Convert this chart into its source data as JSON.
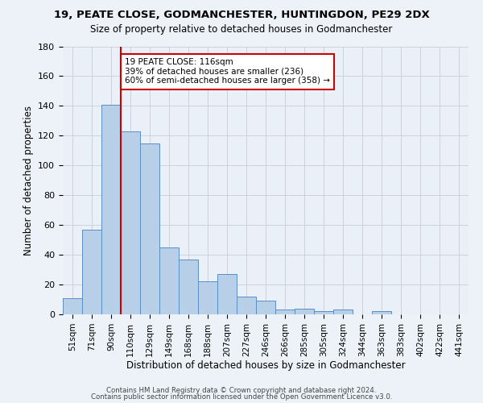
{
  "title": "19, PEATE CLOSE, GODMANCHESTER, HUNTINGDON, PE29 2DX",
  "subtitle": "Size of property relative to detached houses in Godmanchester",
  "xlabel": "Distribution of detached houses by size in Godmanchester",
  "ylabel": "Number of detached properties",
  "bar_values": [
    11,
    57,
    141,
    123,
    115,
    45,
    37,
    22,
    27,
    12,
    9,
    3,
    4,
    2,
    3,
    0,
    2,
    0,
    0,
    0,
    0
  ],
  "bin_labels": [
    "51sqm",
    "71sqm",
    "90sqm",
    "110sqm",
    "129sqm",
    "149sqm",
    "168sqm",
    "188sqm",
    "207sqm",
    "227sqm",
    "246sqm",
    "266sqm",
    "285sqm",
    "305sqm",
    "324sqm",
    "344sqm",
    "363sqm",
    "383sqm",
    "402sqm",
    "422sqm",
    "441sqm"
  ],
  "bar_color": "#b8cfe8",
  "bar_edge_color": "#5b8ec4",
  "background_color": "#eaf0f8",
  "grid_color": "#c8cdd8",
  "vline_pos": 2.5,
  "vline_color": "#cc0000",
  "annotation_text": "19 PEATE CLOSE: 116sqm\n39% of detached houses are smaller (236)\n60% of semi-detached houses are larger (358) →",
  "annotation_box_color": "#ffffff",
  "annotation_box_edge": "#cc0000",
  "footer_line1": "Contains HM Land Registry data © Crown copyright and database right 2024.",
  "footer_line2": "Contains public sector information licensed under the Open Government Licence v3.0.",
  "ylim": [
    0,
    180
  ],
  "yticks": [
    0,
    20,
    40,
    60,
    80,
    100,
    120,
    140,
    160,
    180
  ]
}
